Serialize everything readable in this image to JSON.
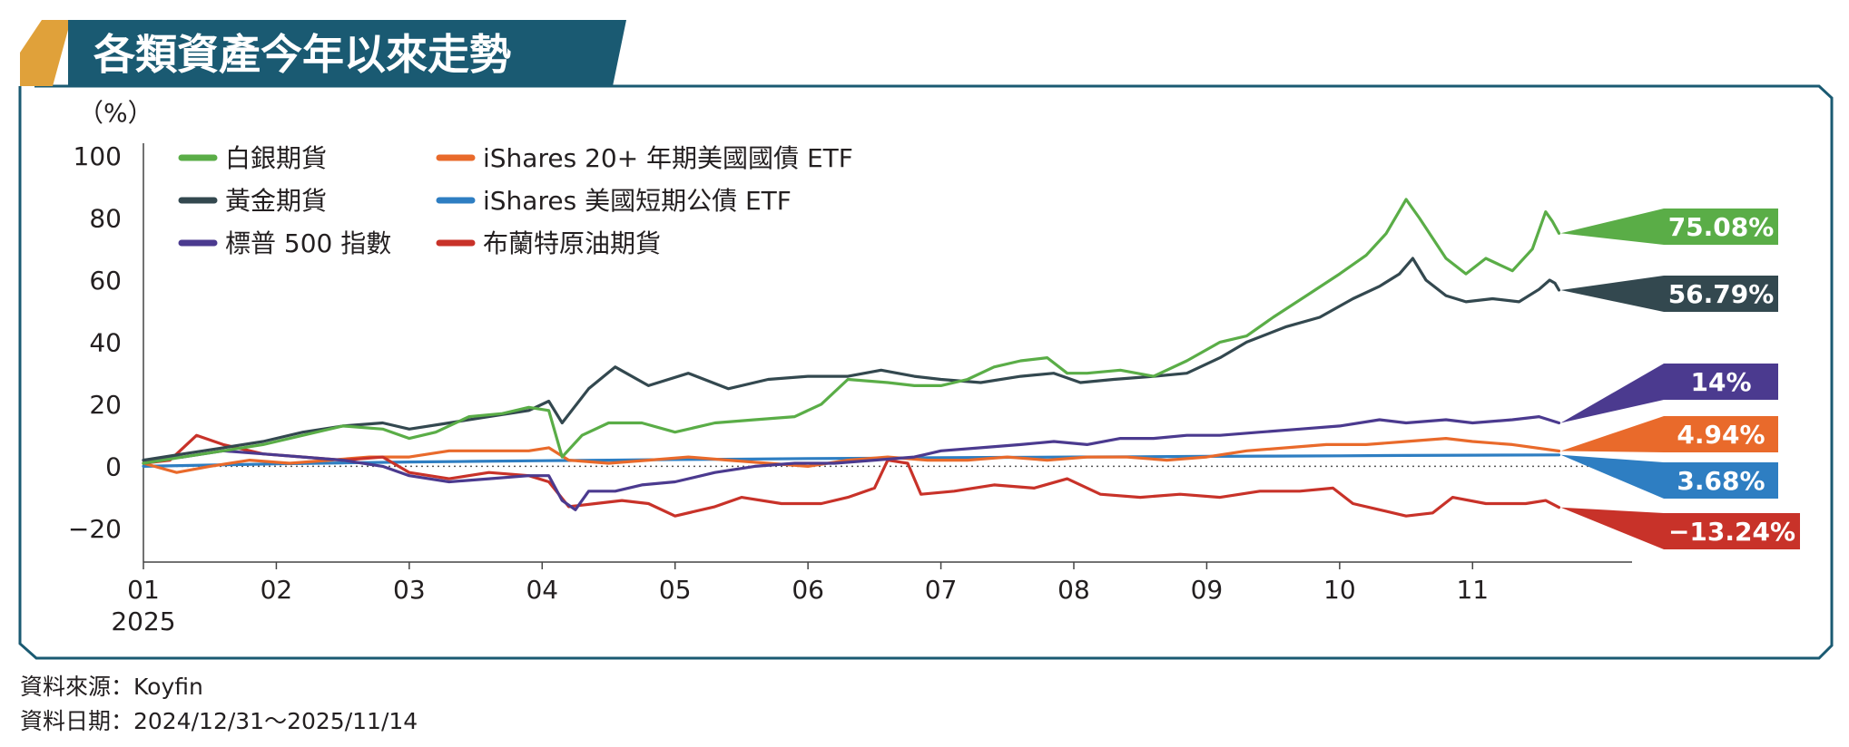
{
  "title": "各類資產今年以來走勢",
  "footer": {
    "source": "資料來源：Koyfin",
    "date_range": "資料日期：2024/12/31～2025/11/14"
  },
  "colors": {
    "frame": "#1a5a72",
    "title_bg": "#1a5a72",
    "title_accent": "#e0a13a",
    "zero_line": "#555555"
  },
  "chart_data": {
    "type": "line",
    "ylabel": "（%）",
    "ylim": [
      -25,
      100
    ],
    "yticks": [
      -20,
      0,
      20,
      40,
      60,
      80,
      100
    ],
    "ytick_labels": [
      "−20",
      "0",
      "20",
      "40",
      "60",
      "80",
      "100"
    ],
    "xlim": [
      1,
      12.2
    ],
    "xticks": [
      1,
      2,
      3,
      4,
      5,
      6,
      7,
      8,
      9,
      10,
      11
    ],
    "xtick_labels": [
      "01",
      "02",
      "03",
      "04",
      "05",
      "06",
      "07",
      "08",
      "09",
      "10",
      "11"
    ],
    "x_year_label": "2025",
    "grid": false,
    "legend_position": "top-left",
    "zero_line": "dotted",
    "series": [
      {
        "name": "白銀期貨",
        "color": "#5aad47",
        "end_label": "75.08%",
        "points": [
          [
            1,
            1
          ],
          [
            1.3,
            3
          ],
          [
            1.6,
            5
          ],
          [
            1.9,
            7
          ],
          [
            2.2,
            10
          ],
          [
            2.5,
            13
          ],
          [
            2.8,
            12
          ],
          [
            3,
            9
          ],
          [
            3.2,
            11
          ],
          [
            3.45,
            16
          ],
          [
            3.7,
            17
          ],
          [
            3.9,
            19
          ],
          [
            4.05,
            18
          ],
          [
            4.15,
            3
          ],
          [
            4.3,
            10
          ],
          [
            4.5,
            14
          ],
          [
            4.75,
            14
          ],
          [
            5,
            11
          ],
          [
            5.3,
            14
          ],
          [
            5.6,
            15
          ],
          [
            5.9,
            16
          ],
          [
            6.1,
            20
          ],
          [
            6.3,
            28
          ],
          [
            6.6,
            27
          ],
          [
            6.8,
            26
          ],
          [
            7,
            26
          ],
          [
            7.2,
            28
          ],
          [
            7.4,
            32
          ],
          [
            7.6,
            34
          ],
          [
            7.8,
            35
          ],
          [
            7.95,
            30
          ],
          [
            8.1,
            30
          ],
          [
            8.35,
            31
          ],
          [
            8.6,
            29
          ],
          [
            8.85,
            34
          ],
          [
            9.1,
            40
          ],
          [
            9.3,
            42
          ],
          [
            9.5,
            48
          ],
          [
            9.75,
            55
          ],
          [
            10,
            62
          ],
          [
            10.2,
            68
          ],
          [
            10.35,
            75
          ],
          [
            10.5,
            86
          ],
          [
            10.6,
            80
          ],
          [
            10.8,
            67
          ],
          [
            10.95,
            62
          ],
          [
            11.1,
            67
          ],
          [
            11.3,
            63
          ],
          [
            11.45,
            70
          ],
          [
            11.55,
            82
          ],
          [
            11.6,
            79
          ],
          [
            11.65,
            75.08
          ]
        ]
      },
      {
        "name": "黃金期貨",
        "color": "#33484f",
        "end_label": "56.79%",
        "points": [
          [
            1,
            2
          ],
          [
            1.3,
            4
          ],
          [
            1.6,
            6
          ],
          [
            1.9,
            8
          ],
          [
            2.2,
            11
          ],
          [
            2.5,
            13
          ],
          [
            2.8,
            14
          ],
          [
            3,
            12
          ],
          [
            3.3,
            14
          ],
          [
            3.6,
            16
          ],
          [
            3.9,
            18
          ],
          [
            4.05,
            21
          ],
          [
            4.15,
            14
          ],
          [
            4.35,
            25
          ],
          [
            4.55,
            32
          ],
          [
            4.8,
            26
          ],
          [
            5.1,
            30
          ],
          [
            5.4,
            25
          ],
          [
            5.7,
            28
          ],
          [
            6,
            29
          ],
          [
            6.3,
            29
          ],
          [
            6.55,
            31
          ],
          [
            6.8,
            29
          ],
          [
            7,
            28
          ],
          [
            7.3,
            27
          ],
          [
            7.6,
            29
          ],
          [
            7.85,
            30
          ],
          [
            8.05,
            27
          ],
          [
            8.3,
            28
          ],
          [
            8.6,
            29
          ],
          [
            8.85,
            30
          ],
          [
            9.1,
            35
          ],
          [
            9.3,
            40
          ],
          [
            9.6,
            45
          ],
          [
            9.85,
            48
          ],
          [
            10.1,
            54
          ],
          [
            10.3,
            58
          ],
          [
            10.45,
            62
          ],
          [
            10.55,
            67
          ],
          [
            10.65,
            60
          ],
          [
            10.8,
            55
          ],
          [
            10.95,
            53
          ],
          [
            11.15,
            54
          ],
          [
            11.35,
            53
          ],
          [
            11.5,
            57
          ],
          [
            11.58,
            60
          ],
          [
            11.62,
            59
          ],
          [
            11.65,
            56.79
          ]
        ]
      },
      {
        "name": "標普 500 指數",
        "color": "#4b3a8f",
        "end_label": "14%",
        "points": [
          [
            1,
            2
          ],
          [
            1.3,
            3
          ],
          [
            1.6,
            5
          ],
          [
            1.9,
            4
          ],
          [
            2.2,
            3
          ],
          [
            2.5,
            2
          ],
          [
            2.8,
            0
          ],
          [
            3,
            -3
          ],
          [
            3.3,
            -5
          ],
          [
            3.6,
            -4
          ],
          [
            3.9,
            -3
          ],
          [
            4.05,
            -3
          ],
          [
            4.15,
            -11
          ],
          [
            4.25,
            -14
          ],
          [
            4.35,
            -8
          ],
          [
            4.55,
            -8
          ],
          [
            4.75,
            -6
          ],
          [
            5,
            -5
          ],
          [
            5.3,
            -2
          ],
          [
            5.6,
            0
          ],
          [
            5.9,
            1
          ],
          [
            6.2,
            1
          ],
          [
            6.5,
            2
          ],
          [
            6.8,
            3
          ],
          [
            7,
            5
          ],
          [
            7.3,
            6
          ],
          [
            7.6,
            7
          ],
          [
            7.85,
            8
          ],
          [
            8.1,
            7
          ],
          [
            8.35,
            9
          ],
          [
            8.6,
            9
          ],
          [
            8.85,
            10
          ],
          [
            9.1,
            10
          ],
          [
            9.4,
            11
          ],
          [
            9.7,
            12
          ],
          [
            10,
            13
          ],
          [
            10.3,
            15
          ],
          [
            10.5,
            14
          ],
          [
            10.8,
            15
          ],
          [
            11,
            14
          ],
          [
            11.3,
            15
          ],
          [
            11.5,
            16
          ],
          [
            11.65,
            14
          ]
        ]
      },
      {
        "name": "iShares 20+ 年期美國國債 ETF",
        "color": "#e96a2b",
        "end_label": "4.94%",
        "points": [
          [
            1,
            1
          ],
          [
            1.25,
            -2
          ],
          [
            1.5,
            0
          ],
          [
            1.8,
            2
          ],
          [
            2.1,
            1
          ],
          [
            2.4,
            2
          ],
          [
            2.7,
            3
          ],
          [
            3,
            3
          ],
          [
            3.3,
            5
          ],
          [
            3.6,
            5
          ],
          [
            3.9,
            5
          ],
          [
            4.05,
            6
          ],
          [
            4.2,
            2
          ],
          [
            4.5,
            1
          ],
          [
            4.8,
            2
          ],
          [
            5.1,
            3
          ],
          [
            5.4,
            2
          ],
          [
            5.7,
            1
          ],
          [
            6,
            0
          ],
          [
            6.3,
            2
          ],
          [
            6.6,
            3
          ],
          [
            6.9,
            2
          ],
          [
            7.2,
            2
          ],
          [
            7.5,
            3
          ],
          [
            7.8,
            2
          ],
          [
            8.1,
            3
          ],
          [
            8.4,
            3
          ],
          [
            8.7,
            2
          ],
          [
            9,
            3
          ],
          [
            9.3,
            5
          ],
          [
            9.6,
            6
          ],
          [
            9.9,
            7
          ],
          [
            10.2,
            7
          ],
          [
            10.5,
            8
          ],
          [
            10.8,
            9
          ],
          [
            11,
            8
          ],
          [
            11.3,
            7
          ],
          [
            11.65,
            4.94
          ]
        ]
      },
      {
        "name": "iShares 美國短期公債 ETF",
        "color": "#2e7ec2",
        "end_label": "3.68%",
        "points": [
          [
            1,
            0
          ],
          [
            1.5,
            0.4
          ],
          [
            2,
            0.8
          ],
          [
            2.5,
            1.1
          ],
          [
            3,
            1.4
          ],
          [
            3.5,
            1.6
          ],
          [
            4,
            1.8
          ],
          [
            4.5,
            2
          ],
          [
            5,
            2.2
          ],
          [
            5.5,
            2.3
          ],
          [
            6,
            2.5
          ],
          [
            6.5,
            2.6
          ],
          [
            7,
            2.8
          ],
          [
            7.5,
            2.9
          ],
          [
            8,
            3
          ],
          [
            8.5,
            3.1
          ],
          [
            9,
            3.2
          ],
          [
            9.5,
            3.3
          ],
          [
            10,
            3.4
          ],
          [
            10.5,
            3.5
          ],
          [
            11,
            3.6
          ],
          [
            11.65,
            3.68
          ]
        ]
      },
      {
        "name": "布蘭特原油期貨",
        "color": "#c83229",
        "end_label": "−13.24%",
        "points": [
          [
            1,
            1
          ],
          [
            1.2,
            2
          ],
          [
            1.4,
            10
          ],
          [
            1.6,
            7
          ],
          [
            1.9,
            4
          ],
          [
            2.2,
            3
          ],
          [
            2.5,
            2
          ],
          [
            2.8,
            3
          ],
          [
            3,
            -2
          ],
          [
            3.3,
            -4
          ],
          [
            3.6,
            -2
          ],
          [
            3.9,
            -3
          ],
          [
            4.05,
            -5
          ],
          [
            4.2,
            -13
          ],
          [
            4.4,
            -12
          ],
          [
            4.6,
            -11
          ],
          [
            4.8,
            -12
          ],
          [
            5,
            -16
          ],
          [
            5.3,
            -13
          ],
          [
            5.5,
            -10
          ],
          [
            5.8,
            -12
          ],
          [
            6.1,
            -12
          ],
          [
            6.3,
            -10
          ],
          [
            6.5,
            -7
          ],
          [
            6.6,
            2
          ],
          [
            6.75,
            1
          ],
          [
            6.85,
            -9
          ],
          [
            7.1,
            -8
          ],
          [
            7.4,
            -6
          ],
          [
            7.7,
            -7
          ],
          [
            7.95,
            -4
          ],
          [
            8.2,
            -9
          ],
          [
            8.5,
            -10
          ],
          [
            8.8,
            -9
          ],
          [
            9.1,
            -10
          ],
          [
            9.4,
            -8
          ],
          [
            9.7,
            -8
          ],
          [
            9.95,
            -7
          ],
          [
            10.1,
            -12
          ],
          [
            10.3,
            -14
          ],
          [
            10.5,
            -16
          ],
          [
            10.7,
            -15
          ],
          [
            10.85,
            -10
          ],
          [
            11.1,
            -12
          ],
          [
            11.4,
            -12
          ],
          [
            11.55,
            -11
          ],
          [
            11.65,
            -13.24
          ]
        ]
      }
    ]
  }
}
